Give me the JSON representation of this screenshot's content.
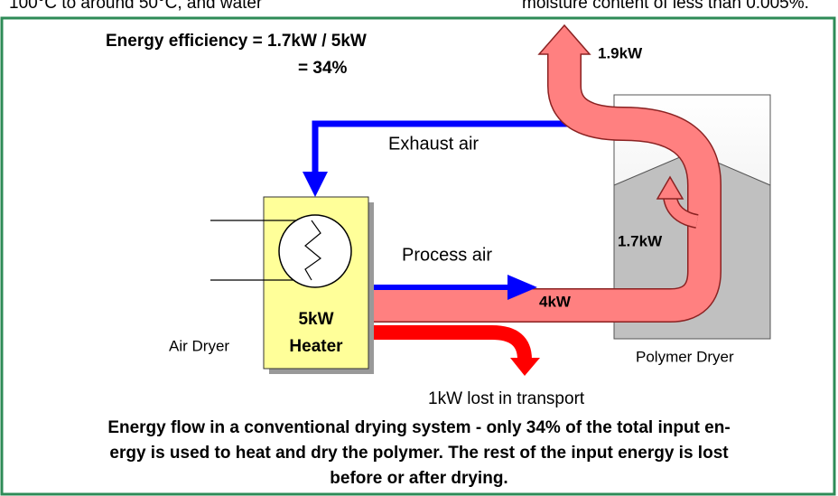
{
  "context": {
    "top_left": "100°C to around 50°C, and water",
    "top_right": "moisture content of less than 0.005%."
  },
  "formula": {
    "line1": "Energy efficiency = 1.7kW / 5kW",
    "line2": "= 34%"
  },
  "flows": {
    "exhaust_air": "Exhaust air",
    "process_air": "Process air",
    "loss_top": "1.9kW",
    "to_polymer": "1.7kW",
    "process_energy": "4kW",
    "transport_loss": "1kW lost in transport"
  },
  "components": {
    "heater_power": "5kW",
    "heater": "Heater",
    "air_dryer": "Air Dryer",
    "polymer_dryer": "Polymer Dryer"
  },
  "caption": [
    "Energy flow in a conventional drying system - only 34% of the total input en-",
    "ergy is used to heat and dry the polymer. The rest of the input energy is lost",
    "before or after drying."
  ]
}
